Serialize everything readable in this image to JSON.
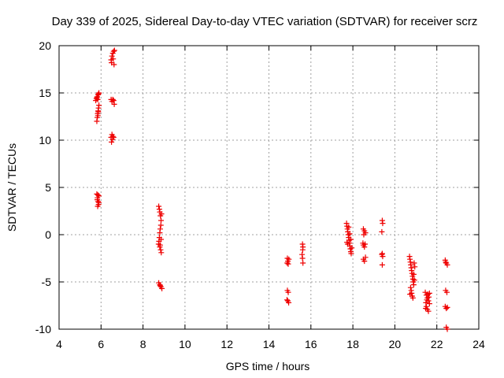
{
  "chart_data": {
    "type": "scatter",
    "title": "Day 339 of 2025, Sidereal Day-to-day VTEC variation (SDTVAR) for receiver scrz",
    "xlabel": "GPS time / hours",
    "ylabel": "SDTVAR / TECUs",
    "xlim": [
      4,
      24
    ],
    "ylim": [
      -10,
      20
    ],
    "xticks": [
      4,
      6,
      8,
      10,
      12,
      14,
      16,
      18,
      20,
      22,
      24
    ],
    "yticks": [
      -10,
      -5,
      0,
      5,
      10,
      15,
      20
    ],
    "xtick_labels": [
      "4",
      "6",
      "8",
      "10",
      "12",
      "14",
      "16",
      "18",
      "20",
      "22",
      "24"
    ],
    "ytick_labels": [
      "-10",
      "-5",
      "0",
      "5",
      "10",
      "15",
      "20"
    ],
    "grid": true,
    "marker": "+",
    "color": "#ee0000",
    "series": [
      {
        "name": "SDTVAR",
        "points": [
          [
            5.75,
            14.2
          ],
          [
            5.78,
            14.4
          ],
          [
            5.82,
            14.6
          ],
          [
            5.86,
            14.8
          ],
          [
            5.9,
            15.0
          ],
          [
            5.8,
            14.5
          ],
          [
            5.88,
            14.9
          ],
          [
            5.84,
            14.3
          ],
          [
            5.8,
            12.0
          ],
          [
            5.82,
            12.4
          ],
          [
            5.84,
            12.8
          ],
          [
            5.86,
            13.1
          ],
          [
            5.88,
            13.4
          ],
          [
            5.9,
            13.7
          ],
          [
            5.85,
            12.6
          ],
          [
            5.87,
            13.0
          ],
          [
            5.8,
            4.3
          ],
          [
            5.85,
            4.2
          ],
          [
            5.9,
            4.1
          ],
          [
            5.83,
            3.9
          ],
          [
            5.86,
            3.5
          ],
          [
            5.88,
            3.2
          ],
          [
            5.84,
            3.0
          ],
          [
            5.9,
            3.4
          ],
          [
            5.82,
            3.7
          ],
          [
            6.48,
            18.5
          ],
          [
            6.52,
            18.9
          ],
          [
            6.56,
            19.2
          ],
          [
            6.6,
            19.4
          ],
          [
            6.64,
            19.5
          ],
          [
            6.5,
            18.2
          ],
          [
            6.58,
            18.6
          ],
          [
            6.62,
            18.0
          ],
          [
            6.48,
            14.3
          ],
          [
            6.52,
            14.1
          ],
          [
            6.56,
            14.3
          ],
          [
            6.6,
            14.2
          ],
          [
            6.63,
            13.8
          ],
          [
            6.48,
            10.3
          ],
          [
            6.52,
            10.6
          ],
          [
            6.56,
            10.4
          ],
          [
            6.6,
            10.3
          ],
          [
            6.5,
            9.8
          ],
          [
            6.55,
            10.1
          ],
          [
            8.75,
            3.0
          ],
          [
            8.78,
            2.7
          ],
          [
            8.8,
            2.4
          ],
          [
            8.83,
            2.0
          ],
          [
            8.86,
            1.5
          ],
          [
            8.85,
            1.0
          ],
          [
            8.82,
            0.6
          ],
          [
            8.8,
            0.2
          ],
          [
            8.78,
            -0.3
          ],
          [
            8.76,
            -0.7
          ],
          [
            8.74,
            -1.0
          ],
          [
            8.8,
            -1.3
          ],
          [
            8.84,
            -1.6
          ],
          [
            8.87,
            -1.9
          ],
          [
            8.82,
            -1.1
          ],
          [
            8.86,
            -0.5
          ],
          [
            8.88,
            2.2
          ],
          [
            8.75,
            -5.1
          ],
          [
            8.8,
            -5.3
          ],
          [
            8.85,
            -5.5
          ],
          [
            8.9,
            -5.7
          ],
          [
            8.82,
            -5.4
          ],
          [
            14.88,
            -2.5
          ],
          [
            14.9,
            -2.8
          ],
          [
            14.92,
            -3.1
          ],
          [
            14.95,
            -2.6
          ],
          [
            14.87,
            -3.0
          ],
          [
            14.88,
            -5.9
          ],
          [
            14.92,
            -6.1
          ],
          [
            14.9,
            -7.0
          ],
          [
            14.94,
            -7.2
          ],
          [
            14.86,
            -6.9
          ],
          [
            15.6,
            -1.0
          ],
          [
            15.62,
            -1.3
          ],
          [
            15.58,
            -2.1
          ],
          [
            15.6,
            -2.5
          ],
          [
            15.62,
            -3.0
          ],
          [
            15.61,
            -1.6
          ],
          [
            17.7,
            1.2
          ],
          [
            17.72,
            0.9
          ],
          [
            17.74,
            0.6
          ],
          [
            17.76,
            0.3
          ],
          [
            17.78,
            0.0
          ],
          [
            17.8,
            -0.3
          ],
          [
            17.82,
            -0.6
          ],
          [
            17.84,
            -0.9
          ],
          [
            17.86,
            -1.2
          ],
          [
            17.88,
            -1.5
          ],
          [
            17.9,
            -1.8
          ],
          [
            17.92,
            -2.0
          ],
          [
            17.75,
            -1.0
          ],
          [
            17.8,
            0.8
          ],
          [
            17.85,
            0.1
          ],
          [
            17.9,
            -0.5
          ],
          [
            17.72,
            -0.8
          ],
          [
            17.95,
            -1.4
          ],
          [
            18.5,
            0.6
          ],
          [
            18.55,
            0.4
          ],
          [
            18.6,
            0.2
          ],
          [
            18.52,
            0.0
          ],
          [
            18.48,
            -0.9
          ],
          [
            18.5,
            -1.1
          ],
          [
            18.55,
            -1.3
          ],
          [
            18.58,
            -1.0
          ],
          [
            18.5,
            -2.6
          ],
          [
            18.55,
            -2.8
          ],
          [
            18.6,
            -2.4
          ],
          [
            19.4,
            1.5
          ],
          [
            19.42,
            1.2
          ],
          [
            19.38,
            0.3
          ],
          [
            19.4,
            -2.0
          ],
          [
            19.42,
            -2.3
          ],
          [
            19.38,
            -2.1
          ],
          [
            19.4,
            -3.2
          ],
          [
            20.7,
            -2.3
          ],
          [
            20.72,
            -2.6
          ],
          [
            20.74,
            -2.9
          ],
          [
            20.76,
            -3.2
          ],
          [
            20.78,
            -3.5
          ],
          [
            20.8,
            -3.8
          ],
          [
            20.82,
            -4.1
          ],
          [
            20.84,
            -4.4
          ],
          [
            20.86,
            -4.7
          ],
          [
            20.88,
            -5.0
          ],
          [
            20.9,
            -5.3
          ],
          [
            20.75,
            -5.6
          ],
          [
            20.78,
            -5.9
          ],
          [
            20.8,
            -6.2
          ],
          [
            20.83,
            -6.5
          ],
          [
            20.86,
            -6.7
          ],
          [
            20.72,
            -6.3
          ],
          [
            20.9,
            -4.2
          ],
          [
            20.92,
            -3.0
          ],
          [
            20.95,
            -3.4
          ],
          [
            20.93,
            -4.8
          ],
          [
            21.45,
            -6.1
          ],
          [
            21.5,
            -6.4
          ],
          [
            21.55,
            -6.7
          ],
          [
            21.6,
            -7.0
          ],
          [
            21.65,
            -7.3
          ],
          [
            21.5,
            -7.6
          ],
          [
            21.55,
            -7.9
          ],
          [
            21.6,
            -8.1
          ],
          [
            21.48,
            -7.2
          ],
          [
            21.52,
            -6.9
          ],
          [
            21.58,
            -6.3
          ],
          [
            21.62,
            -6.6
          ],
          [
            21.65,
            -6.2
          ],
          [
            21.47,
            -7.8
          ],
          [
            22.4,
            -2.7
          ],
          [
            22.45,
            -3.0
          ],
          [
            22.5,
            -3.2
          ],
          [
            22.42,
            -2.9
          ],
          [
            22.42,
            -5.9
          ],
          [
            22.48,
            -6.1
          ],
          [
            22.4,
            -7.6
          ],
          [
            22.45,
            -7.8
          ],
          [
            22.5,
            -7.7
          ],
          [
            22.45,
            -9.8
          ],
          [
            22.5,
            -10.0
          ]
        ]
      }
    ]
  }
}
